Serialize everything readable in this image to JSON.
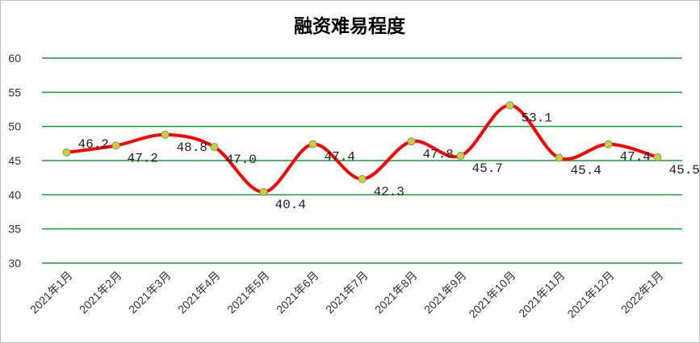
{
  "chart_data": {
    "type": "line",
    "title": "融资难易程度",
    "categories": [
      "2021年1月",
      "2021年2月",
      "2021年3月",
      "2021年4月",
      "2021年5月",
      "2021年6月",
      "2021年7月",
      "2021年8月",
      "2021年9月",
      "2021年10月",
      "2021年11月",
      "2021年12月",
      "2022年1月"
    ],
    "series": [
      {
        "color": "#ff0000",
        "marker_color": "#c8d22a",
        "values": [
          46.2,
          47.2,
          48.8,
          47.0,
          40.4,
          47.4,
          42.3,
          47.8,
          45.7,
          53.1,
          45.4,
          47.4,
          45.5
        ],
        "value_labels": [
          "46.2",
          "47.2",
          "48.8",
          "47.0",
          "40.4",
          "47.4",
          "42.3",
          "47.8",
          "45.7",
          "53.1",
          "45.4",
          "47.4",
          "45.5"
        ]
      }
    ],
    "ylim": [
      30,
      60
    ],
    "yticks": [
      30,
      35,
      40,
      45,
      50,
      55,
      60
    ],
    "grid": true,
    "grid_color": "#1a9a3a",
    "smooth": true
  }
}
